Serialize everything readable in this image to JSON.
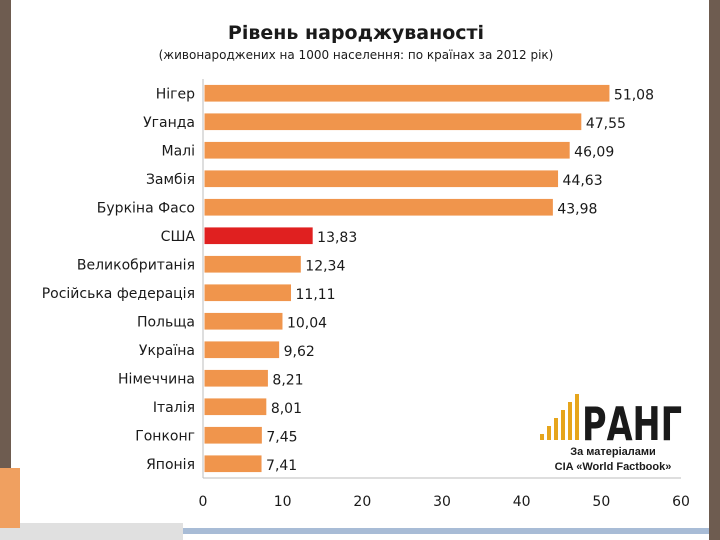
{
  "chart_data": {
    "type": "bar",
    "orientation": "horizontal",
    "title": "Рівень народжуваності",
    "subtitle": "(живонароджених на 1000 населення: по країнах за 2012 рік)",
    "categories": [
      "Нігер",
      "Уганда",
      "Малі",
      "Замбія",
      "Буркіна Фасо",
      "США",
      "Великобританія",
      "Російська федерація",
      "Польща",
      "Україна",
      "Німеччина",
      "Італія",
      "Гонконг",
      "Японія"
    ],
    "values": [
      51.08,
      47.55,
      46.09,
      44.63,
      43.98,
      13.83,
      12.34,
      11.11,
      10.04,
      9.62,
      8.21,
      8.01,
      7.45,
      7.41
    ],
    "value_labels": [
      "51,08",
      "47,55",
      "46,09",
      "44,63",
      "43,98",
      "13,83",
      "12,34",
      "11,11",
      "10,04",
      "9,62",
      "8,21",
      "8,01",
      "7,45",
      "7,41"
    ],
    "highlight": {
      "США": "bar",
      "Україна": "label"
    },
    "xlim": [
      0,
      60
    ],
    "xticks": [
      0,
      10,
      20,
      30,
      40,
      50,
      60
    ],
    "colors": {
      "bar": "#f0954c",
      "bar_edge": "#ffffff",
      "highlight": "#e02020",
      "label_highlight": "#e02020"
    },
    "grid": false
  },
  "logo": {
    "text": "РАНГ"
  },
  "source": {
    "line1": "За матеріалами",
    "line2": "CIA «World Factbook»"
  }
}
